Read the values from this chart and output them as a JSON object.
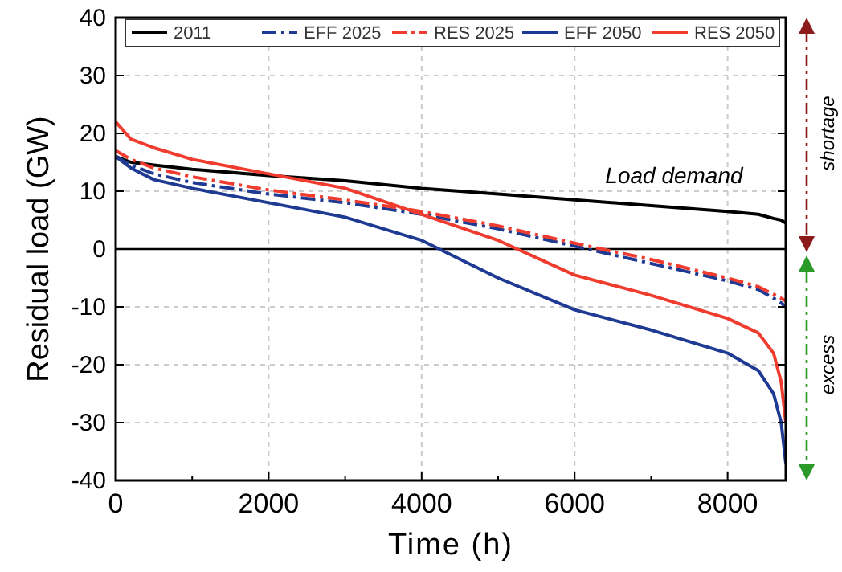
{
  "chart_data": {
    "type": "line",
    "xlabel": "Time (h)",
    "ylabel": "Residual load (GW)",
    "x": [
      0,
      200,
      500,
      1000,
      2000,
      3000,
      4000,
      5000,
      6000,
      7000,
      8000,
      8400,
      8600,
      8700,
      8760
    ],
    "series": [
      {
        "name": "2011",
        "color": "#000000",
        "line_style": "solid",
        "values": [
          16,
          15,
          14.5,
          13.8,
          12.7,
          11.8,
          10.5,
          9.5,
          8.5,
          7.5,
          6.5,
          6,
          5.3,
          5,
          4.5
        ]
      },
      {
        "name": "EFF 2025",
        "color": "#1f3a93",
        "line_style": "dashed",
        "values": [
          16,
          14.5,
          13,
          11.5,
          9.5,
          8,
          6,
          3.5,
          0.5,
          -2.5,
          -5.5,
          -7,
          -8.5,
          -9.3,
          -10
        ]
      },
      {
        "name": "RES 2025",
        "color": "#f03c2e",
        "line_style": "dashed",
        "values": [
          17,
          15.5,
          14,
          12.5,
          10.2,
          8.5,
          6.5,
          4,
          1,
          -1.8,
          -5,
          -6.5,
          -7.8,
          -8.5,
          -9
        ]
      },
      {
        "name": "EFF 2050",
        "color": "#1f3a93",
        "line_style": "solid",
        "values": [
          16,
          14,
          12,
          10.5,
          8,
          5.5,
          1.5,
          -5,
          -10.5,
          -14,
          -18,
          -21,
          -25,
          -30,
          -37
        ]
      },
      {
        "name": "RES 2050",
        "color": "#f03c2e",
        "line_style": "solid",
        "values": [
          22,
          19,
          17.5,
          15.5,
          13,
          10.5,
          6,
          1.5,
          -4.5,
          -8,
          -12,
          -14.5,
          -18,
          -23,
          -30
        ]
      }
    ],
    "xlim": [
      0,
      8760
    ],
    "ylim": [
      -40,
      40
    ],
    "xticks": [
      0,
      {
        "value": 1000,
        "label": null
      },
      2000,
      {
        "value": 3000,
        "label": null
      },
      4000,
      {
        "value": 5000,
        "label": null
      },
      6000,
      {
        "value": 7000,
        "label": null
      },
      8000
    ],
    "yticks": [
      -40,
      -30,
      -20,
      -10,
      0,
      10,
      20,
      30,
      40
    ],
    "ref_lines": [
      {
        "axis": "y",
        "value": 0,
        "color": "#000000"
      }
    ],
    "annotations": [
      {
        "text": "Load demand",
        "x": 6400,
        "y": 8
      },
      "shortage",
      "excess"
    ],
    "grid": true,
    "legend": "top"
  }
}
